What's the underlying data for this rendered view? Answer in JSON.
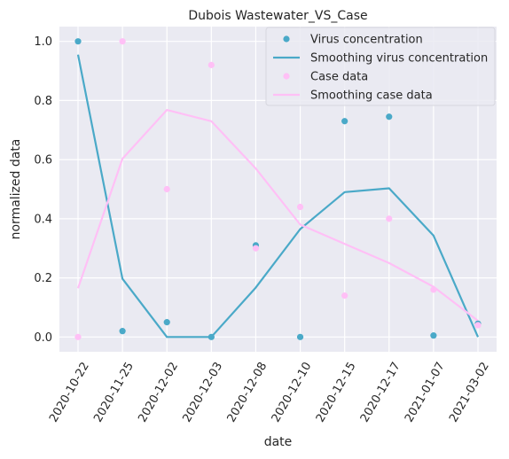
{
  "chart_data": {
    "type": "line",
    "title": "Dubois Wastewater_VS_Case",
    "xlabel": "date",
    "ylabel": "normalized data",
    "categories": [
      "2020-10-22",
      "2020-11-25",
      "2020-12-02",
      "2020-12-03",
      "2020-12-08",
      "2020-12-10",
      "2020-12-15",
      "2020-12-17",
      "2021-01-07",
      "2021-03-02"
    ],
    "ylim": [
      -0.05,
      1.05
    ],
    "yticks": [
      "0.0",
      "0.2",
      "0.4",
      "0.6",
      "0.8",
      "1.0"
    ],
    "grid": true,
    "legend_position": "top-right",
    "series": [
      {
        "name": "Virus concentration",
        "kind": "scatter",
        "color": "#4aa9c8",
        "values": [
          1.0,
          0.02,
          0.05,
          0.0,
          0.31,
          0.0,
          0.73,
          0.745,
          0.005,
          0.045
        ]
      },
      {
        "name": "Smoothing virus concentration",
        "kind": "line",
        "color": "#4aa9c8",
        "values": [
          0.955,
          0.197,
          0.0,
          0.0,
          0.167,
          0.365,
          0.49,
          0.503,
          0.343,
          0.0
        ]
      },
      {
        "name": "Case data",
        "kind": "scatter",
        "color": "#ffc0f6",
        "values": [
          0.0,
          1.0,
          0.5,
          0.92,
          0.3,
          0.44,
          0.14,
          0.4,
          0.16,
          0.04
        ]
      },
      {
        "name": "Smoothing case data",
        "kind": "line",
        "color": "#ffc0f6",
        "values": [
          0.165,
          0.603,
          0.768,
          0.73,
          0.57,
          0.38,
          0.315,
          0.25,
          0.17,
          0.055
        ]
      }
    ]
  }
}
